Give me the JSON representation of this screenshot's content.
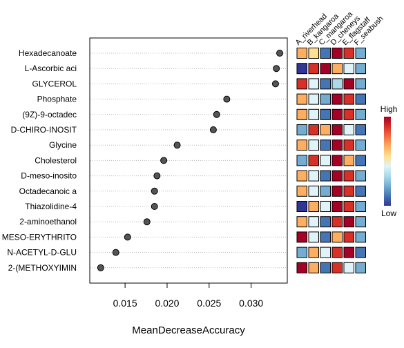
{
  "chart_data": {
    "type": "scatter",
    "xlabel": "MeanDecreaseAccuracy",
    "xlim": [
      0.0108,
      0.0343
    ],
    "xticks": [
      0.015,
      0.02,
      0.025,
      0.03
    ],
    "xtick_labels": [
      "0.015",
      "0.020",
      "0.025",
      "0.030"
    ],
    "grid": "horizontal dotted",
    "point_color": "#555555",
    "features": [
      {
        "label": "Hexadecanoate",
        "value": 0.0334,
        "heat": [
          0.72,
          0.5,
          0.08,
          0.95,
          0.88,
          0.25
        ]
      },
      {
        "label": "L-Ascorbic aci",
        "value": 0.033,
        "heat": [
          0.05,
          0.85,
          0.97,
          0.68,
          0.45,
          0.25
        ]
      },
      {
        "label": "GLYCEROL",
        "value": 0.0329,
        "heat": [
          0.88,
          0.45,
          0.08,
          0.3,
          0.97,
          0.25
        ]
      },
      {
        "label": "Phosphate",
        "value": 0.0271,
        "heat": [
          0.7,
          0.45,
          0.25,
          0.97,
          0.88,
          0.08
        ]
      },
      {
        "label": "(9Z)-9-octadec",
        "value": 0.0259,
        "heat": [
          0.7,
          0.45,
          0.08,
          0.97,
          0.85,
          0.25
        ]
      },
      {
        "label": "D-CHIRO-INOSIT",
        "value": 0.0255,
        "heat": [
          0.25,
          0.85,
          0.7,
          0.97,
          0.45,
          0.08
        ]
      },
      {
        "label": "Glycine",
        "value": 0.0212,
        "heat": [
          0.72,
          0.45,
          0.08,
          0.97,
          0.85,
          0.25
        ]
      },
      {
        "label": "Cholesterol",
        "value": 0.0196,
        "heat": [
          0.25,
          0.85,
          0.45,
          0.97,
          0.7,
          0.08
        ]
      },
      {
        "label": "D-meso-inosito",
        "value": 0.0188,
        "heat": [
          0.7,
          0.45,
          0.08,
          0.97,
          0.88,
          0.25
        ]
      },
      {
        "label": "Octadecanoic a",
        "value": 0.0185,
        "heat": [
          0.72,
          0.45,
          0.25,
          0.97,
          0.88,
          0.08
        ]
      },
      {
        "label": "Thiazolidine-4",
        "value": 0.0185,
        "heat": [
          0.05,
          0.7,
          0.45,
          0.97,
          0.88,
          0.25
        ]
      },
      {
        "label": "2-aminoethanol",
        "value": 0.0176,
        "heat": [
          0.72,
          0.45,
          0.08,
          0.88,
          0.97,
          0.25
        ]
      },
      {
        "label": "MESO-ERYTHRITO",
        "value": 0.0153,
        "heat": [
          0.97,
          0.45,
          0.08,
          0.7,
          0.88,
          0.25
        ]
      },
      {
        "label": "N-ACETYL-D-GLU",
        "value": 0.0139,
        "heat": [
          0.25,
          0.7,
          0.45,
          0.88,
          0.97,
          0.08
        ]
      },
      {
        "label": "2-(METHOXYIMIN",
        "value": 0.0121,
        "heat": [
          0.97,
          0.72,
          0.08,
          0.88,
          0.45,
          0.25
        ]
      }
    ],
    "heatmap_columns": [
      "A_riverhead",
      "B_kangaroa",
      "C_mangaroa",
      "D_cheneys",
      "E_flagstaff",
      "F_seabush"
    ],
    "colorscale": [
      "#313695",
      "#4575b4",
      "#74add1",
      "#abd9e9",
      "#e0f3f8",
      "#fee090",
      "#fdae61",
      "#f46d43",
      "#d73027",
      "#a50026"
    ],
    "legend": {
      "high_label": "High",
      "low_label": "Low"
    }
  }
}
